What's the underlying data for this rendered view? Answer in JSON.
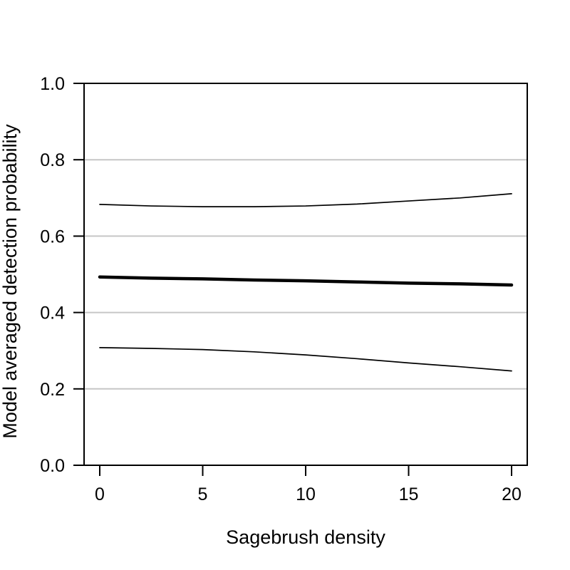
{
  "figure": {
    "background": "#ffffff",
    "axis_color": "#000000"
  },
  "chart_data": {
    "type": "line",
    "title": "",
    "xlabel": "Sagebrush density",
    "ylabel": "Model averaged detection probability",
    "xlim": [
      0,
      20
    ],
    "ylim": [
      0.0,
      1.0
    ],
    "x_tick_labels": [
      "0",
      "5",
      "10",
      "15",
      "20"
    ],
    "x_tick_values": [
      0,
      5,
      10,
      15,
      20
    ],
    "y_tick_labels": [
      "0.0",
      "0.2",
      "0.4",
      "0.6",
      "0.8",
      "1.0"
    ],
    "y_tick_values": [
      0.0,
      0.2,
      0.4,
      0.6,
      0.8,
      1.0
    ],
    "gridlines_y": [
      0.2,
      0.4,
      0.6,
      0.8
    ],
    "grid_on": true,
    "grid_color": "#c6c6c6",
    "line_color": "#000000",
    "legend_position": "none",
    "x": [
      0,
      2.5,
      5,
      7.5,
      10,
      12.5,
      15,
      17.5,
      20
    ],
    "series": [
      {
        "name": "upper-confidence-limit",
        "role": "upper-ci",
        "stroke_width": 1.7,
        "values": [
          0.683,
          0.679,
          0.677,
          0.677,
          0.679,
          0.684,
          0.692,
          0.7,
          0.711
        ]
      },
      {
        "name": "model-averaged-estimate",
        "role": "mean",
        "stroke_width": 4.5,
        "values": [
          0.493,
          0.49,
          0.488,
          0.485,
          0.483,
          0.48,
          0.477,
          0.475,
          0.472
        ]
      },
      {
        "name": "lower-confidence-limit",
        "role": "lower-ci",
        "stroke_width": 1.7,
        "values": [
          0.308,
          0.306,
          0.303,
          0.297,
          0.289,
          0.279,
          0.268,
          0.258,
          0.247
        ]
      }
    ]
  }
}
